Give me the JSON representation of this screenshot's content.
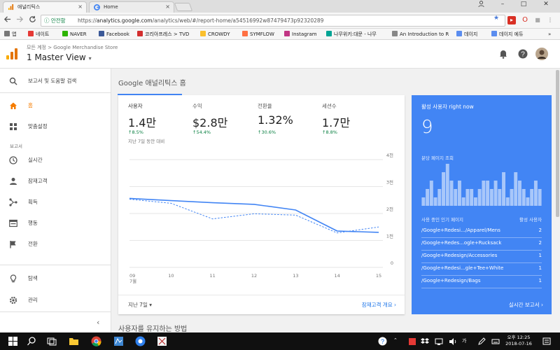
{
  "browser": {
    "tabs": [
      {
        "label": "애널리틱스",
        "active": true,
        "close": "×"
      },
      {
        "label": "Home",
        "active": false,
        "close": "×"
      }
    ],
    "window_controls": [
      "–",
      "□",
      "✕"
    ],
    "nav_icons": [
      "back-arrow-icon",
      "forward-arrow-icon",
      "reload-icon"
    ],
    "secure_label": "ⓘ 안전함",
    "url_prefix": "https://",
    "url_host": "analytics.google.com",
    "url_path": "/analytics/web/#/report-home/a54516992w87479473p92320289",
    "more_label": "»",
    "bookmarks": [
      {
        "label": "앱",
        "color": "#777777"
      },
      {
        "label": "네이트",
        "color": "#e53935"
      },
      {
        "label": "NAVER",
        "color": "#2db400"
      },
      {
        "label": "Facebook",
        "color": "#3b5998"
      },
      {
        "label": "코리아프레스 > TVD",
        "color": "#d32f2f"
      },
      {
        "label": "CROWDY",
        "color": "#fbc02d"
      },
      {
        "label": "SYMFLOW",
        "color": "#ff7043"
      },
      {
        "label": "Instagram",
        "color": "#c13584"
      },
      {
        "label": "나무위키:대문 - 나무",
        "color": "#00a495"
      },
      {
        "label": "An Introduction to R",
        "color": "#888888"
      },
      {
        "label": "데이지",
        "color": "#5b8def"
      },
      {
        "label": "데이지 에듀",
        "color": "#5b8def"
      }
    ]
  },
  "header": {
    "breadcrumb": "모든 계정 > Google Merchandise Store",
    "view_name": "1 Master View",
    "view_caret": "▾",
    "icons": [
      "notifications-icon",
      "help-icon",
      "avatar"
    ]
  },
  "sidebar": {
    "search_label": "보고서 및 도움말 검색",
    "home_label": "홈",
    "custom_label": "맞춤설정",
    "reports_group": "보고서",
    "reports": [
      {
        "label": "실시간",
        "icon": "clock-icon"
      },
      {
        "label": "잠재고객",
        "icon": "person-icon"
      },
      {
        "label": "획득",
        "icon": "acquisition-icon"
      },
      {
        "label": "행동",
        "icon": "behavior-icon"
      },
      {
        "label": "전환",
        "icon": "flag-icon"
      }
    ],
    "discover_label": "탐색",
    "admin_label": "관리",
    "collapse_label": "‹"
  },
  "main": {
    "page_title": "Google 애널리틱스 홈",
    "metrics": [
      {
        "label": "사용자",
        "value": "1.4만",
        "change": "↑8.5%",
        "period": "지난 7일 동안 대비"
      },
      {
        "label": "수익",
        "value": "$2.8만",
        "change": "↑54.4%"
      },
      {
        "label": "전환율",
        "value": "1.32%",
        "change": "↑30.6%"
      },
      {
        "label": "세션수",
        "value": "1.7만",
        "change": "↑8.8%"
      }
    ],
    "date_range": "지난 7일 ▾",
    "audience_link": "잠재고객 개요  ›",
    "retention_title": "사용자를 유지하는 방법"
  },
  "chart_data": {
    "type": "line",
    "x": [
      "09 7월",
      "10",
      "11",
      "12",
      "13",
      "14",
      "15"
    ],
    "y_ticks": [
      "0",
      "1천",
      "2천",
      "3천",
      "4천"
    ],
    "ylim": [
      0,
      4000
    ],
    "series": [
      {
        "values": [
          2560,
          2480,
          2400,
          2340,
          2130,
          1350,
          1300
        ],
        "color": "#4285f4",
        "style": "solid"
      },
      {
        "values": [
          2530,
          2380,
          1800,
          1990,
          1940,
          1280,
          1500
        ],
        "color": "#4285f4",
        "style": "dashed"
      }
    ]
  },
  "realtime": {
    "title": "활성 사용자 right now",
    "count": "9",
    "per_minute_label": "분당 페이지 조회",
    "per_minute_values": [
      1,
      2,
      3,
      1,
      2,
      4,
      5,
      3,
      2,
      3,
      1,
      2,
      2,
      1,
      2,
      3,
      3,
      2,
      3,
      2,
      4,
      1,
      2,
      4,
      3,
      2,
      1,
      2,
      3,
      2
    ],
    "pages_header": "사용 중인 인기 페이지",
    "users_header": "활성 사용자",
    "pages": [
      {
        "page": "/Google+Redesi.../Apparel/Mens",
        "count": "2"
      },
      {
        "page": "/Google+Redes...ogle+Rucksack",
        "count": "2"
      },
      {
        "page": "/Google+Redesign/Accessories",
        "count": "1"
      },
      {
        "page": "/Google+Redesi...gle+Tee+White",
        "count": "1"
      },
      {
        "page": "/Google+Redesign/Bags",
        "count": "1"
      }
    ],
    "footer_link": "실시간 보고서  ›"
  },
  "taskbar": {
    "clock_time": "오후 12:25",
    "clock_date": "2018-07-16",
    "tray_label": "가",
    "taskbar_icons": [
      "windows-start-icon",
      "search-icon",
      "task-view-icon",
      "file-explorer-icon",
      "chrome-icon",
      "app-icon",
      "app-icon-2",
      "app-icon-3"
    ]
  }
}
